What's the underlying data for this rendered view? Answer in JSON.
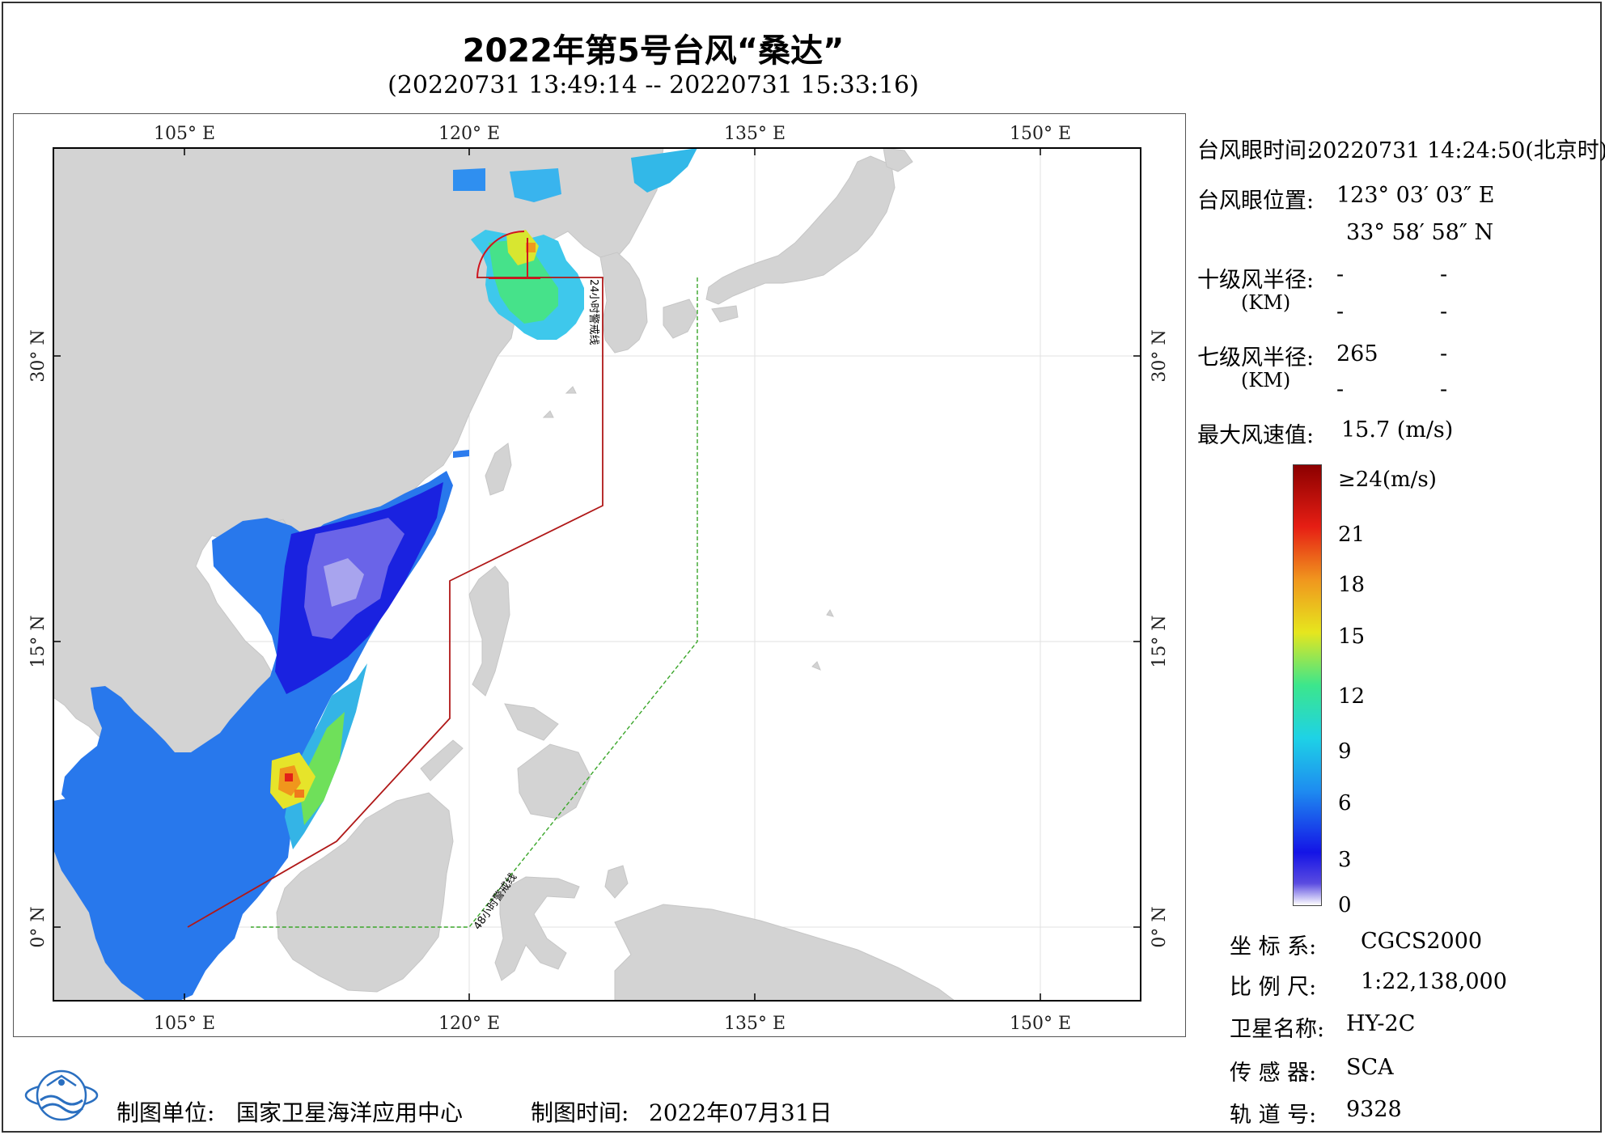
{
  "title": "2022年第5号台风“桑达”",
  "subtitle": "(20220731 13:49:14 -- 20220731 15:33:16)",
  "map": {
    "lon_ticks": [
      105,
      120,
      135,
      150
    ],
    "lat_ticks": [
      0,
      15,
      30
    ],
    "lon_labels": [
      "105° E",
      "120° E",
      "135° E",
      "150° E"
    ],
    "lat_labels": [
      "0° N",
      "15° N",
      "30° N"
    ],
    "warning_24h_label": "24小时警戒线",
    "warning_48h_label": "48小时警戒线",
    "colors": {
      "land": "#d3d3d3",
      "sea": "#ffffff",
      "line_24h": "#b01818",
      "line_48h": "#3aa62a",
      "grid": "#e2e2e2"
    }
  },
  "info": {
    "eye_time_label": "台风眼时间:",
    "eye_time_value": "20220731 14:24:50(北京时)",
    "eye_pos_label": "台风眼位置:",
    "eye_lon": "123° 03′ 03″ E",
    "eye_lat": "33° 58′ 58″ N",
    "r10_label": "十级风半径:",
    "r10_unit": "(KM)",
    "r10_values": [
      "-",
      "-",
      "-",
      "-"
    ],
    "r7_label": "七级风半径:",
    "r7_unit": "(KM)",
    "r7_values": [
      "265",
      "-",
      "-",
      "-"
    ],
    "max_wind_label": "最大风速值:",
    "max_wind_value": "15.7  (m/s)"
  },
  "colorbar": {
    "labels": [
      "≥24(m/s)",
      "21",
      "18",
      "15",
      "12",
      "9",
      "6",
      "3",
      "0"
    ],
    "stops": [
      "#ffffff",
      "#5a4be0",
      "#1414e6",
      "#1e8cf0",
      "#1ed2e6",
      "#3ce68c",
      "#e6e61e",
      "#f0961e",
      "#e61e14",
      "#8c0000"
    ]
  },
  "meta": {
    "crs_label": "坐 标 系:",
    "crs_value": "CGCS2000",
    "scale_label": "比 例 尺:",
    "scale_value": "1:22,138,000",
    "satellite_label": "卫星名称:",
    "satellite_value": "HY-2C",
    "sensor_label": "传 感 器:",
    "sensor_value": "SCA",
    "orbit_label": "轨 道 号:",
    "orbit_value": "9328"
  },
  "footer": {
    "org_label": "制图单位:",
    "org_value": "国家卫星海洋应用中心",
    "date_label": "制图时间:",
    "date_value": "2022年07月31日"
  }
}
